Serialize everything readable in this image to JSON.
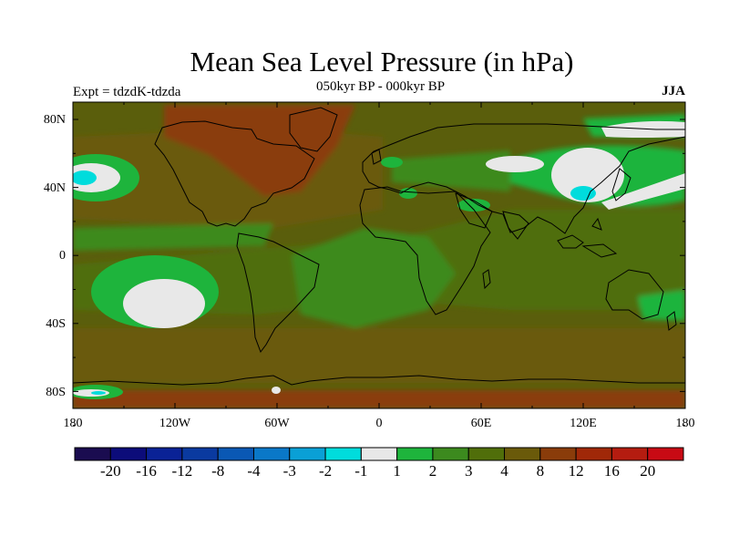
{
  "header": {
    "title": "Mean Sea Level Pressure (in hPa)",
    "period": "050kyr BP - 000kyr BP",
    "experiment": "Expt = tdzdK-tdzda",
    "season": "JJA"
  },
  "axes": {
    "lat_labels": [
      "80N",
      "40N",
      "0",
      "40S",
      "80S"
    ],
    "lon_labels": [
      "180",
      "120W",
      "60W",
      "0",
      "60E",
      "120E",
      "180"
    ]
  },
  "colorbar": {
    "colors": [
      "#1a0c50",
      "#0c0c7a",
      "#0a2296",
      "#0a3aa0",
      "#0a58b4",
      "#0a78c8",
      "#0aa0d6",
      "#00dcdc",
      "#e8e8e8",
      "#1eb43c",
      "#3c8a1e",
      "#506e0a",
      "#6a5a0a",
      "#8a3c0a",
      "#a02808",
      "#b41c10",
      "#c80a14"
    ],
    "labels": [
      "-20",
      "-16",
      "-12",
      "-8",
      "-4",
      "-3",
      "-2",
      "-1",
      "1",
      "2",
      "3",
      "4",
      "8",
      "12",
      "16",
      "20"
    ]
  },
  "map_colors": {
    "background": "#5a5e0c",
    "olive": "#506e0a",
    "brown": "#6a5a0a",
    "rust": "#8a3c0a",
    "green_dark": "#3c8a1e",
    "green": "#1eb43c",
    "white": "#e8e8e8",
    "cyan": "#00dcdc",
    "coast": "#000000"
  }
}
